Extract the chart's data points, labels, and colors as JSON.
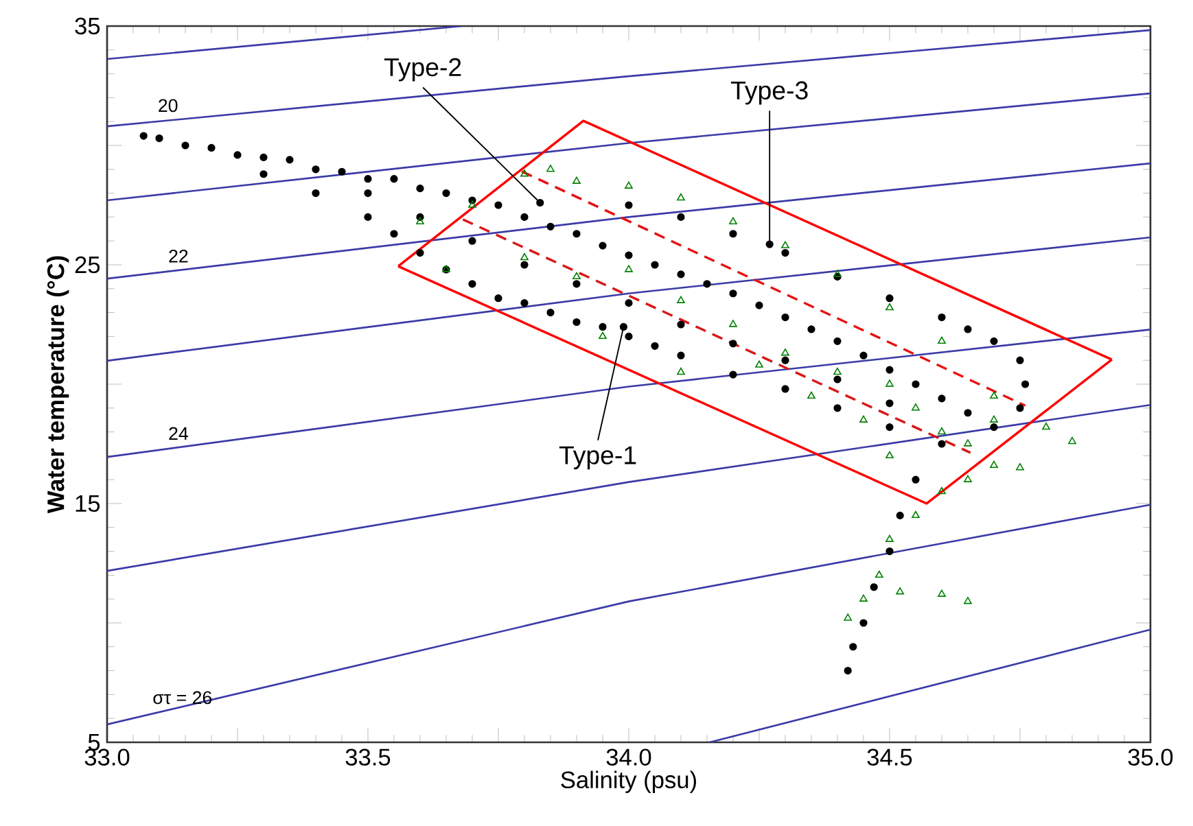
{
  "chart_data": {
    "type": "scatter",
    "xlabel": "Salinity (psu)",
    "ylabel": "Water temperature (°C)",
    "xlim": [
      33.0,
      35.0
    ],
    "ylim": [
      5,
      35
    ],
    "xticks": [
      {
        "value": 33.0,
        "label": "33.0"
      },
      {
        "value": 33.25,
        "label": null
      },
      {
        "value": 33.5,
        "label": "33.5"
      },
      {
        "value": 33.75,
        "label": null
      },
      {
        "value": 34.0,
        "label": "34.0"
      },
      {
        "value": 34.25,
        "label": null
      },
      {
        "value": 34.5,
        "label": "34.5"
      },
      {
        "value": 34.75,
        "label": null
      },
      {
        "value": 35.0,
        "label": "35.0"
      }
    ],
    "yticks": [
      5,
      {
        "value": 10,
        "label": null
      },
      15,
      {
        "value": 20,
        "label": null
      },
      25,
      {
        "value": 30,
        "label": null
      },
      35
    ],
    "series": [
      {
        "type": "line",
        "color": "#3b3ba8",
        "x": [
          33.0,
          33.68
        ],
        "values": [
          33.62,
          35.0
        ]
      },
      {
        "type": "line",
        "color": "#3b3ba8",
        "x": [
          33.0,
          34.0,
          35.0
        ],
        "values": [
          30.8,
          32.9,
          34.83
        ]
      },
      {
        "type": "line",
        "color": "#3b3ba8",
        "x": [
          33.0,
          34.0,
          35.0
        ],
        "values": [
          27.7,
          30.1,
          32.18
        ]
      },
      {
        "type": "line",
        "color": "#3b3ba8",
        "x": [
          33.0,
          34.0,
          35.0
        ],
        "values": [
          24.42,
          27.0,
          29.25
        ]
      },
      {
        "type": "line",
        "color": "#3b3ba8",
        "x": [
          33.0,
          34.0,
          35.0
        ],
        "values": [
          20.98,
          23.8,
          26.15
        ]
      },
      {
        "type": "line",
        "color": "#3b3ba8",
        "x": [
          33.0,
          34.0,
          35.0
        ],
        "values": [
          16.95,
          19.9,
          22.29
        ]
      },
      {
        "type": "line",
        "color": "#3b3ba8",
        "x": [
          33.0,
          34.0,
          35.0
        ],
        "values": [
          12.18,
          15.9,
          19.13
        ]
      },
      {
        "type": "line",
        "color": "#3b3ba8",
        "x": [
          33.0,
          34.0,
          35.0
        ],
        "values": [
          5.75,
          10.9,
          14.95
        ]
      },
      {
        "type": "line",
        "color": "#3b3ba8",
        "x": [
          34.155,
          35.0
        ],
        "values": [
          5.0,
          9.72
        ]
      },
      {
        "marker": "circle",
        "color": "#000000",
        "x": [
          33.07,
          33.1,
          33.15,
          33.2,
          33.25,
          33.3,
          33.35,
          33.4,
          33.45,
          33.5,
          33.55,
          33.6,
          33.65,
          33.7,
          33.75,
          33.8,
          33.85,
          33.9,
          33.95,
          34.0,
          34.05,
          34.1,
          34.15,
          34.2,
          34.25,
          34.3,
          34.35,
          34.4,
          34.45,
          34.5,
          34.55,
          34.6,
          34.65,
          33.3,
          33.4,
          33.5,
          33.55,
          33.6,
          33.65,
          33.7,
          33.75,
          33.8,
          33.85,
          33.9,
          33.95,
          34.0,
          34.05,
          34.1,
          34.2,
          34.3,
          34.4,
          34.5,
          33.5,
          33.6,
          33.7,
          33.8,
          33.9,
          34.0,
          34.1,
          34.2,
          34.3,
          34.4,
          34.5,
          34.0,
          34.1,
          34.2,
          34.3,
          34.4,
          34.5,
          34.6,
          34.65,
          34.7,
          34.75,
          34.76,
          34.75,
          34.7,
          34.6,
          34.55,
          34.52,
          34.5,
          34.47,
          34.45,
          34.43,
          34.42,
          33.83,
          34.27,
          33.99
        ],
        "values": [
          30.4,
          30.3,
          30.0,
          29.9,
          29.6,
          29.5,
          29.4,
          29.0,
          28.9,
          28.6,
          28.6,
          28.2,
          28.0,
          27.7,
          27.5,
          27.0,
          26.6,
          26.3,
          25.8,
          25.4,
          25.0,
          24.6,
          24.2,
          23.8,
          23.3,
          22.8,
          22.3,
          21.8,
          21.2,
          20.6,
          20.0,
          19.4,
          18.8,
          28.8,
          28.0,
          27.0,
          26.3,
          25.5,
          24.8,
          24.2,
          23.6,
          23.4,
          23.0,
          22.6,
          22.4,
          22.0,
          21.6,
          21.2,
          20.4,
          19.8,
          19.0,
          18.2,
          28.0,
          27.0,
          26.0,
          25.0,
          24.2,
          23.4,
          22.5,
          21.7,
          21.0,
          20.2,
          19.2,
          27.5,
          27.0,
          26.3,
          25.5,
          24.5,
          23.6,
          22.8,
          22.3,
          21.8,
          21.0,
          20.0,
          19.0,
          18.2,
          17.5,
          16.0,
          14.5,
          13.0,
          11.5,
          10.0,
          9.0,
          8.0,
          27.6,
          25.86,
          22.4
        ]
      },
      {
        "marker": "triangle",
        "color": "#008000",
        "x": [
          33.6,
          33.7,
          33.8,
          33.85,
          33.9,
          34.0,
          34.1,
          34.2,
          34.3,
          34.4,
          34.5,
          34.6,
          33.65,
          33.8,
          33.9,
          34.0,
          34.1,
          34.2,
          34.3,
          34.4,
          34.5,
          34.55,
          34.6,
          34.65,
          34.7,
          34.8,
          34.85,
          34.75,
          34.65,
          34.6,
          34.55,
          34.5,
          34.48,
          34.45,
          34.42,
          34.52,
          34.6,
          34.65,
          34.7,
          34.5,
          34.45,
          34.35,
          34.25,
          33.95,
          34.1,
          34.7
        ],
        "values": [
          26.8,
          27.5,
          28.8,
          29.0,
          28.5,
          28.3,
          27.8,
          26.8,
          25.8,
          24.6,
          23.2,
          21.8,
          24.8,
          25.3,
          24.5,
          24.8,
          23.5,
          22.5,
          21.3,
          20.5,
          20.0,
          19.0,
          18.0,
          17.5,
          18.5,
          18.2,
          17.6,
          16.5,
          16.0,
          15.5,
          14.5,
          13.5,
          12.0,
          11.0,
          10.2,
          11.3,
          11.2,
          10.9,
          16.6,
          17.0,
          18.5,
          19.5,
          20.8,
          22.0,
          20.5,
          19.5
        ]
      },
      {
        "type": "line",
        "color": "#ff0000",
        "line_style": "solid",
        "x": [
          33.558,
          33.913,
          34.926
        ],
        "values": [
          24.94,
          31.03,
          21.03
        ]
      },
      {
        "type": "line",
        "color": "#ff0000",
        "line_style": "solid",
        "x": [
          33.558,
          34.571,
          34.926
        ],
        "values": [
          24.94,
          15.0,
          21.03
        ]
      },
      {
        "type": "line",
        "color": "#e81010",
        "line_style": "dashed",
        "x": [
          33.795,
          34.76
        ],
        "values": [
          28.91,
          19.1
        ]
      },
      {
        "type": "line",
        "color": "#d81818",
        "line_style": "dashed",
        "x": [
          33.682,
          34.655
        ],
        "values": [
          26.9,
          17.13
        ]
      }
    ],
    "annotations": [
      {
        "text": "20",
        "x": 33.1,
        "y": 31.0
      },
      {
        "text": "22",
        "x": 33.12,
        "y": 24.7
      },
      {
        "text": "24",
        "x": 33.12,
        "y": 17.27
      },
      {
        "text": "στ = 26",
        "x": 33.09,
        "y": 6.2
      },
      {
        "text": "Type-2",
        "x": 33.83,
        "y": 27.6
      },
      {
        "text": "Type-3",
        "x": 34.27,
        "y": 25.86
      },
      {
        "text": "Type-1",
        "x": 33.99,
        "y": 22.4
      }
    ]
  }
}
